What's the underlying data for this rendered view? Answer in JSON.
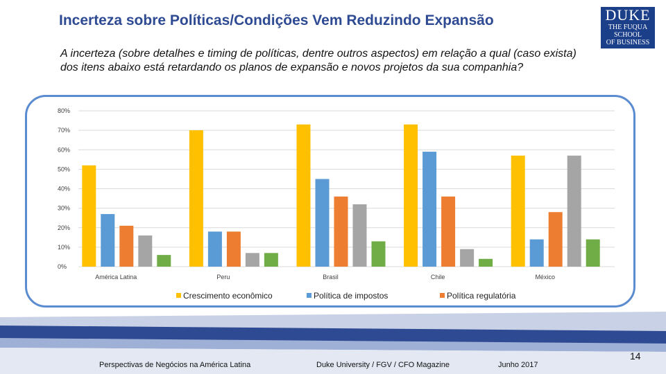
{
  "header": {
    "title": "Incerteza sobre Políticas/Condições Vem Reduzindo Expansão",
    "logo_line1": "DUKE",
    "logo_line2": "THE FUQUA",
    "logo_line3": "SCHOOL",
    "logo_line4": "OF BUSINESS"
  },
  "question": "A incerteza (sobre detalhes e timing de políticas, dentre outros aspectos) em relação a qual (caso exista) dos itens abaixo está retardando os planos de expansão e novos projetos da sua companhia?",
  "chart_data": {
    "type": "bar",
    "categories": [
      "América Latina",
      "Peru",
      "Brasil",
      "Chile",
      "México"
    ],
    "series": [
      {
        "name": "Crescimento econômico",
        "color": "#ffc000",
        "values": [
          52,
          70,
          73,
          73,
          57
        ]
      },
      {
        "name": "Política de impostos",
        "color": "#5b9bd5",
        "values": [
          27,
          18,
          45,
          59,
          14
        ]
      },
      {
        "name": "Política regulatória",
        "color": "#ed7d31",
        "values": [
          21,
          18,
          36,
          36,
          28
        ]
      },
      {
        "name": "",
        "color": "#a5a5a5",
        "values": [
          16,
          7,
          32,
          9,
          57
        ]
      },
      {
        "name": "",
        "color": "#70ad47",
        "values": [
          6,
          7,
          13,
          4,
          14
        ]
      }
    ],
    "legend_visible": [
      "Crescimento econômico",
      "Política de impostos",
      "Política regulatória"
    ],
    "yticks": [
      "0%",
      "10%",
      "20%",
      "30%",
      "40%",
      "50%",
      "60%",
      "70%",
      "80%"
    ],
    "ylim": [
      0,
      80
    ],
    "legend_position": "bottom",
    "grid": true
  },
  "footer": {
    "left": "Perspectivas de Negócios na América Latina",
    "center": "Duke University / FGV / CFO Magazine",
    "date": "Junho 2017",
    "page": "14"
  }
}
